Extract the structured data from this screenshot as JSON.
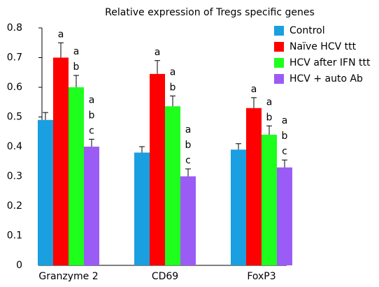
{
  "chart_data": {
    "type": "bar",
    "title": "Relative expression of Tregs specific genes",
    "categories": [
      "Granzyme 2",
      "CD69",
      "FoxP3"
    ],
    "ylim": [
      0,
      0.8
    ],
    "yticks": [
      0,
      0.1,
      0.2,
      0.3,
      0.4,
      0.5,
      0.6,
      0.7,
      0.8
    ],
    "legend": "top-right",
    "series": [
      {
        "name": "Control",
        "color": "#1a9fe0",
        "values": [
          0.49,
          0.38,
          0.39
        ],
        "errors": [
          0.025,
          0.02,
          0.02
        ]
      },
      {
        "name": "Naïve HCV ttt",
        "color": "#ff0000",
        "values": [
          0.7,
          0.645,
          0.53
        ],
        "errors": [
          0.05,
          0.045,
          0.035
        ],
        "letters": [
          [
            "a"
          ],
          [
            "a"
          ],
          [
            "a"
          ]
        ]
      },
      {
        "name": "HCV after IFN ttt",
        "color": "#1eff1e",
        "values": [
          0.6,
          0.536,
          0.44
        ],
        "errors": [
          0.04,
          0.035,
          0.03
        ],
        "letters": [
          [
            "a",
            "b"
          ],
          [
            "a",
            "b"
          ],
          [
            "a",
            "b"
          ]
        ]
      },
      {
        "name": "HCV + auto Ab",
        "color": "#9b5cf5",
        "values": [
          0.4,
          0.3,
          0.33
        ],
        "errors": [
          0.025,
          0.025,
          0.025
        ],
        "letters": [
          [
            "a",
            "b",
            "c"
          ],
          [
            "a",
            "b",
            "c"
          ],
          [
            "a",
            "b",
            "c"
          ]
        ]
      }
    ]
  }
}
